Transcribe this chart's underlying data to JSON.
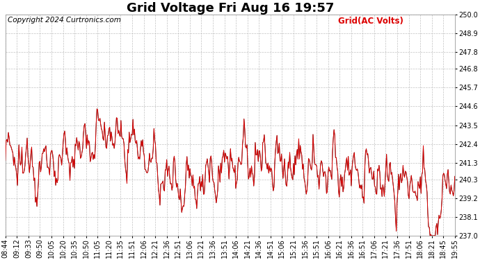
{
  "title": "Grid Voltage Fri Aug 16 19:57",
  "copyright": "Copyright 2024 Curtronics.com",
  "legend_label": "Grid(AC Volts)",
  "line_color": "#dd0000",
  "line_color_black": "#222222",
  "background_color": "#ffffff",
  "grid_color": "#bbbbbb",
  "ylim": [
    237.0,
    250.0
  ],
  "yticks": [
    237.0,
    238.1,
    239.2,
    240.3,
    241.3,
    242.4,
    243.5,
    244.6,
    245.7,
    246.8,
    247.8,
    248.9,
    250.0
  ],
  "xtick_labels": [
    "08:44",
    "09:12",
    "09:33",
    "09:50",
    "10:05",
    "10:20",
    "10:35",
    "10:50",
    "11:05",
    "11:20",
    "11:35",
    "11:51",
    "12:06",
    "12:21",
    "12:36",
    "12:51",
    "13:06",
    "13:21",
    "13:36",
    "13:51",
    "14:06",
    "14:21",
    "14:36",
    "14:51",
    "15:06",
    "15:21",
    "15:36",
    "15:51",
    "16:06",
    "16:21",
    "16:36",
    "16:51",
    "17:06",
    "17:21",
    "17:36",
    "17:51",
    "18:06",
    "18:21",
    "18:45",
    "19:55"
  ],
  "title_fontsize": 13,
  "label_fontsize": 7,
  "copyright_fontsize": 7.5,
  "legend_fontsize": 8.5
}
